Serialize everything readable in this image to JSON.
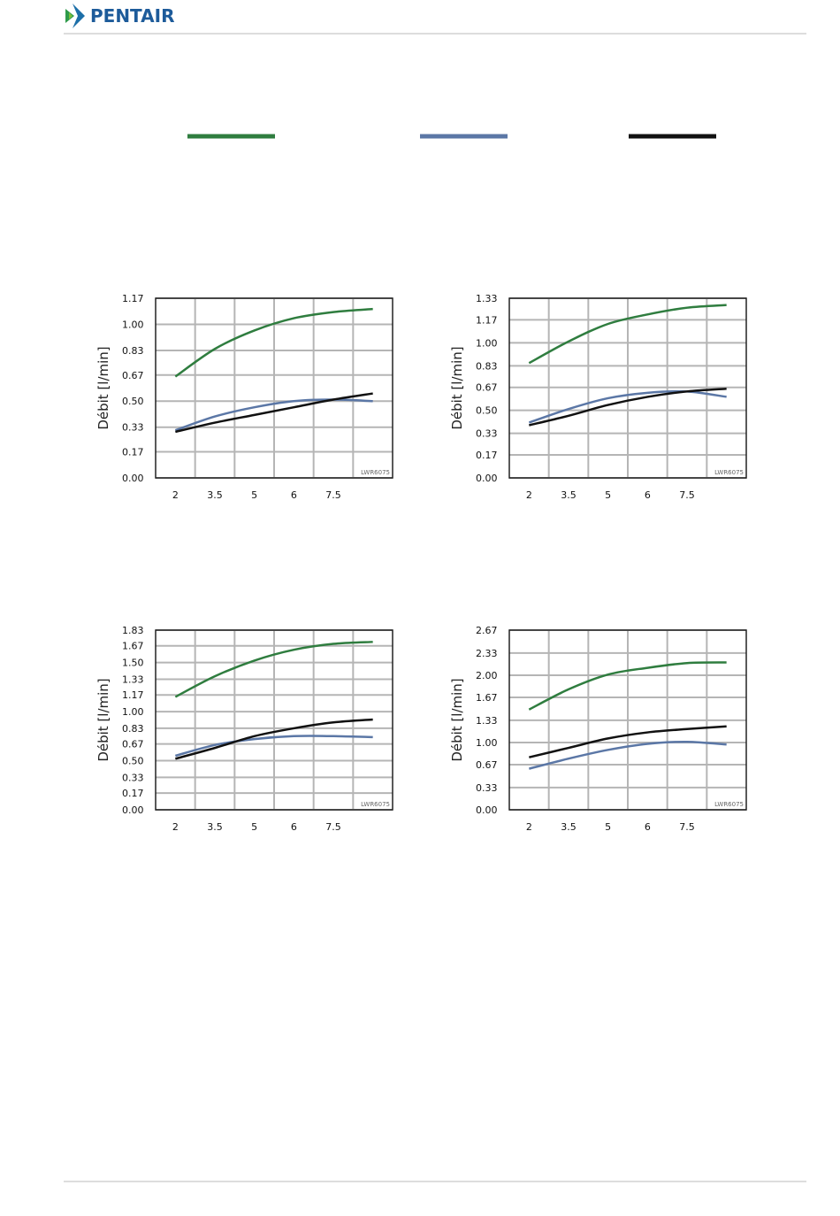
{
  "header": {
    "brand": "PENTAIR"
  },
  "chart_data": [
    {
      "type": "line",
      "y_label": "Débit [l/min]",
      "annotation": "LWR6075",
      "categories": [
        "2",
        "3.5",
        "5",
        "6",
        "7.5",
        null
      ],
      "ylim": [
        0,
        1.17
      ],
      "yticks": [
        {
          "value": 0,
          "label": "0.00"
        },
        0.17,
        0.33,
        {
          "value": 0.5,
          "label": "0.50"
        },
        0.67,
        0.83,
        {
          "value": 1,
          "label": "1.00"
        },
        1.17
      ],
      "grid": true,
      "series": [
        {
          "color": "#2f7d3f",
          "values": [
            0.66,
            0.84,
            0.96,
            1.04,
            1.08,
            1.1
          ]
        },
        {
          "color": "#5b77a6",
          "values": [
            0.31,
            0.4,
            0.46,
            0.5,
            0.51,
            0.5
          ]
        },
        {
          "color": "#111111",
          "values": [
            0.3,
            0.36,
            0.41,
            0.46,
            0.51,
            0.55
          ]
        }
      ]
    },
    {
      "type": "line",
      "y_label": "Débit [l/min]",
      "annotation": "LWR6075",
      "categories": [
        "2",
        "3.5",
        "5",
        "6",
        "7.5",
        null
      ],
      "ylim": [
        0,
        1.33
      ],
      "yticks": [
        {
          "value": 0,
          "label": "0.00"
        },
        0.17,
        0.33,
        {
          "value": 0.5,
          "label": "0.50"
        },
        0.67,
        0.83,
        {
          "value": 1,
          "label": "1.00"
        },
        1.17,
        1.33
      ],
      "grid": true,
      "series": [
        {
          "color": "#2f7d3f",
          "values": [
            0.85,
            1.01,
            1.14,
            1.21,
            1.26,
            1.28
          ]
        },
        {
          "color": "#5b77a6",
          "values": [
            0.41,
            0.51,
            0.59,
            0.63,
            0.64,
            0.6
          ]
        },
        {
          "color": "#111111",
          "values": [
            0.39,
            0.46,
            0.54,
            0.6,
            0.64,
            0.66
          ]
        }
      ]
    },
    {
      "type": "line",
      "y_label": "Débit [l/min]",
      "annotation": "LWR6075",
      "categories": [
        "2",
        "3.5",
        "5",
        "6",
        "7.5",
        null
      ],
      "ylim": [
        0,
        1.83
      ],
      "yticks": [
        {
          "value": 0,
          "label": "0.00"
        },
        0.17,
        0.33,
        {
          "value": 0.5,
          "label": "0.50"
        },
        0.67,
        0.83,
        {
          "value": 1,
          "label": "1.00"
        },
        1.17,
        1.33,
        {
          "value": 1.5,
          "label": "1.50"
        },
        1.67,
        1.83
      ],
      "grid": true,
      "series": [
        {
          "color": "#2f7d3f",
          "values": [
            1.15,
            1.36,
            1.52,
            1.63,
            1.69,
            1.71
          ]
        },
        {
          "color": "#5b77a6",
          "values": [
            0.55,
            0.66,
            0.72,
            0.75,
            0.75,
            0.74
          ]
        },
        {
          "color": "#111111",
          "values": [
            0.52,
            0.63,
            0.75,
            0.83,
            0.89,
            0.92
          ]
        }
      ]
    },
    {
      "type": "line",
      "y_label": "Débit [l/min]",
      "annotation": "LWR6075",
      "categories": [
        "2",
        "3.5",
        "5",
        "6",
        "7.5",
        null
      ],
      "ylim": [
        0,
        2.67
      ],
      "yticks": [
        {
          "value": 0,
          "label": "0.00"
        },
        0.33,
        0.67,
        {
          "value": 1,
          "label": "1.00"
        },
        1.33,
        1.67,
        {
          "value": 2,
          "label": "2.00"
        },
        2.33,
        2.67
      ],
      "grid": true,
      "series": [
        {
          "color": "#2f7d3f",
          "values": [
            1.49,
            1.79,
            2.01,
            2.11,
            2.18,
            2.19
          ]
        },
        {
          "color": "#5b77a6",
          "values": [
            0.61,
            0.76,
            0.89,
            0.98,
            1.01,
            0.97
          ]
        },
        {
          "color": "#111111",
          "values": [
            0.78,
            0.92,
            1.06,
            1.15,
            1.2,
            1.24
          ]
        }
      ]
    }
  ]
}
